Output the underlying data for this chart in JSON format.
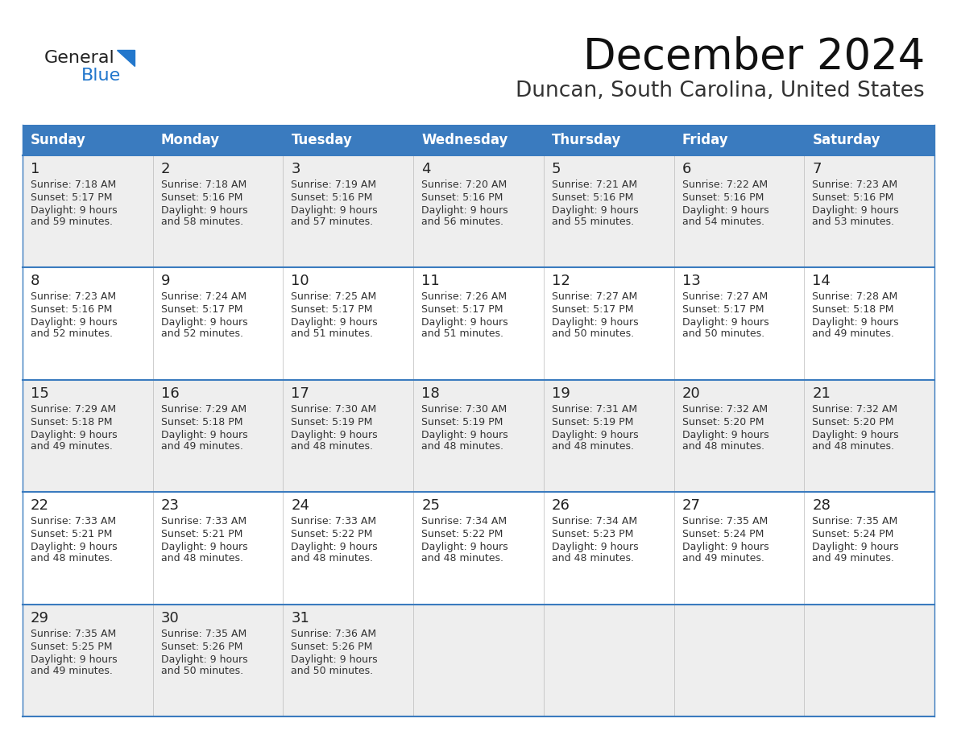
{
  "title": "December 2024",
  "subtitle": "Duncan, South Carolina, United States",
  "header_color": "#3a7bbf",
  "header_text_color": "#ffffff",
  "day_headers": [
    "Sunday",
    "Monday",
    "Tuesday",
    "Wednesday",
    "Thursday",
    "Friday",
    "Saturday"
  ],
  "text_color": "#333333",
  "line_color": "#3a7bbf",
  "bg_odd": "#eeeeee",
  "bg_even": "#ffffff",
  "weeks": [
    [
      {
        "day": "1",
        "sunrise": "7:18 AM",
        "sunset": "5:17 PM",
        "daylight1": "9 hours",
        "daylight2": "and 59 minutes."
      },
      {
        "day": "2",
        "sunrise": "7:18 AM",
        "sunset": "5:16 PM",
        "daylight1": "9 hours",
        "daylight2": "and 58 minutes."
      },
      {
        "day": "3",
        "sunrise": "7:19 AM",
        "sunset": "5:16 PM",
        "daylight1": "9 hours",
        "daylight2": "and 57 minutes."
      },
      {
        "day": "4",
        "sunrise": "7:20 AM",
        "sunset": "5:16 PM",
        "daylight1": "9 hours",
        "daylight2": "and 56 minutes."
      },
      {
        "day": "5",
        "sunrise": "7:21 AM",
        "sunset": "5:16 PM",
        "daylight1": "9 hours",
        "daylight2": "and 55 minutes."
      },
      {
        "day": "6",
        "sunrise": "7:22 AM",
        "sunset": "5:16 PM",
        "daylight1": "9 hours",
        "daylight2": "and 54 minutes."
      },
      {
        "day": "7",
        "sunrise": "7:23 AM",
        "sunset": "5:16 PM",
        "daylight1": "9 hours",
        "daylight2": "and 53 minutes."
      }
    ],
    [
      {
        "day": "8",
        "sunrise": "7:23 AM",
        "sunset": "5:16 PM",
        "daylight1": "9 hours",
        "daylight2": "and 52 minutes."
      },
      {
        "day": "9",
        "sunrise": "7:24 AM",
        "sunset": "5:17 PM",
        "daylight1": "9 hours",
        "daylight2": "and 52 minutes."
      },
      {
        "day": "10",
        "sunrise": "7:25 AM",
        "sunset": "5:17 PM",
        "daylight1": "9 hours",
        "daylight2": "and 51 minutes."
      },
      {
        "day": "11",
        "sunrise": "7:26 AM",
        "sunset": "5:17 PM",
        "daylight1": "9 hours",
        "daylight2": "and 51 minutes."
      },
      {
        "day": "12",
        "sunrise": "7:27 AM",
        "sunset": "5:17 PM",
        "daylight1": "9 hours",
        "daylight2": "and 50 minutes."
      },
      {
        "day": "13",
        "sunrise": "7:27 AM",
        "sunset": "5:17 PM",
        "daylight1": "9 hours",
        "daylight2": "and 50 minutes."
      },
      {
        "day": "14",
        "sunrise": "7:28 AM",
        "sunset": "5:18 PM",
        "daylight1": "9 hours",
        "daylight2": "and 49 minutes."
      }
    ],
    [
      {
        "day": "15",
        "sunrise": "7:29 AM",
        "sunset": "5:18 PM",
        "daylight1": "9 hours",
        "daylight2": "and 49 minutes."
      },
      {
        "day": "16",
        "sunrise": "7:29 AM",
        "sunset": "5:18 PM",
        "daylight1": "9 hours",
        "daylight2": "and 49 minutes."
      },
      {
        "day": "17",
        "sunrise": "7:30 AM",
        "sunset": "5:19 PM",
        "daylight1": "9 hours",
        "daylight2": "and 48 minutes."
      },
      {
        "day": "18",
        "sunrise": "7:30 AM",
        "sunset": "5:19 PM",
        "daylight1": "9 hours",
        "daylight2": "and 48 minutes."
      },
      {
        "day": "19",
        "sunrise": "7:31 AM",
        "sunset": "5:19 PM",
        "daylight1": "9 hours",
        "daylight2": "and 48 minutes."
      },
      {
        "day": "20",
        "sunrise": "7:32 AM",
        "sunset": "5:20 PM",
        "daylight1": "9 hours",
        "daylight2": "and 48 minutes."
      },
      {
        "day": "21",
        "sunrise": "7:32 AM",
        "sunset": "5:20 PM",
        "daylight1": "9 hours",
        "daylight2": "and 48 minutes."
      }
    ],
    [
      {
        "day": "22",
        "sunrise": "7:33 AM",
        "sunset": "5:21 PM",
        "daylight1": "9 hours",
        "daylight2": "and 48 minutes."
      },
      {
        "day": "23",
        "sunrise": "7:33 AM",
        "sunset": "5:21 PM",
        "daylight1": "9 hours",
        "daylight2": "and 48 minutes."
      },
      {
        "day": "24",
        "sunrise": "7:33 AM",
        "sunset": "5:22 PM",
        "daylight1": "9 hours",
        "daylight2": "and 48 minutes."
      },
      {
        "day": "25",
        "sunrise": "7:34 AM",
        "sunset": "5:22 PM",
        "daylight1": "9 hours",
        "daylight2": "and 48 minutes."
      },
      {
        "day": "26",
        "sunrise": "7:34 AM",
        "sunset": "5:23 PM",
        "daylight1": "9 hours",
        "daylight2": "and 48 minutes."
      },
      {
        "day": "27",
        "sunrise": "7:35 AM",
        "sunset": "5:24 PM",
        "daylight1": "9 hours",
        "daylight2": "and 49 minutes."
      },
      {
        "day": "28",
        "sunrise": "7:35 AM",
        "sunset": "5:24 PM",
        "daylight1": "9 hours",
        "daylight2": "and 49 minutes."
      }
    ],
    [
      {
        "day": "29",
        "sunrise": "7:35 AM",
        "sunset": "5:25 PM",
        "daylight1": "9 hours",
        "daylight2": "and 49 minutes."
      },
      {
        "day": "30",
        "sunrise": "7:35 AM",
        "sunset": "5:26 PM",
        "daylight1": "9 hours",
        "daylight2": "and 50 minutes."
      },
      {
        "day": "31",
        "sunrise": "7:36 AM",
        "sunset": "5:26 PM",
        "daylight1": "9 hours",
        "daylight2": "and 50 minutes."
      },
      null,
      null,
      null,
      null
    ]
  ]
}
